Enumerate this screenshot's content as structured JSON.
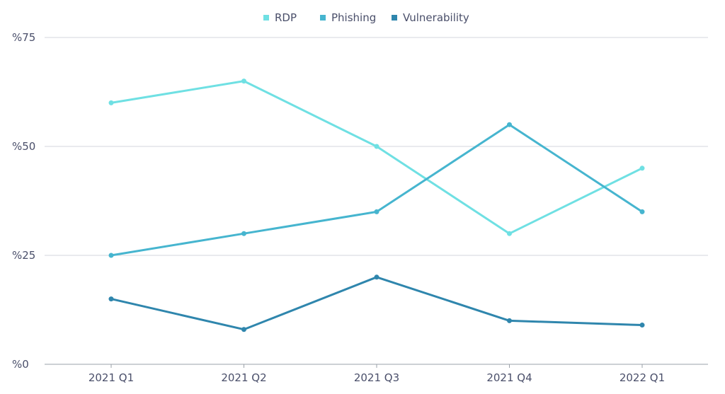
{
  "chart_data": {
    "type": "line",
    "categories": [
      "2021 Q1",
      "2021 Q2",
      "2021 Q3",
      "2021 Q4",
      "2022 Q1"
    ],
    "y_tick_labels": [
      "%0",
      "%25",
      "%50",
      "%75"
    ],
    "ylim": [
      0,
      75
    ],
    "grid": true,
    "legend_position": "top-center",
    "series": [
      {
        "name": "RDP",
        "color": "#6fe0e3",
        "values": [
          60,
          65,
          50,
          30,
          45
        ]
      },
      {
        "name": "Phishing",
        "color": "#46b5cf",
        "values": [
          25,
          30,
          35,
          55,
          35
        ]
      },
      {
        "name": "Vulnerability",
        "color": "#2f86ad",
        "values": [
          15,
          8,
          20,
          10,
          9
        ]
      }
    ]
  }
}
